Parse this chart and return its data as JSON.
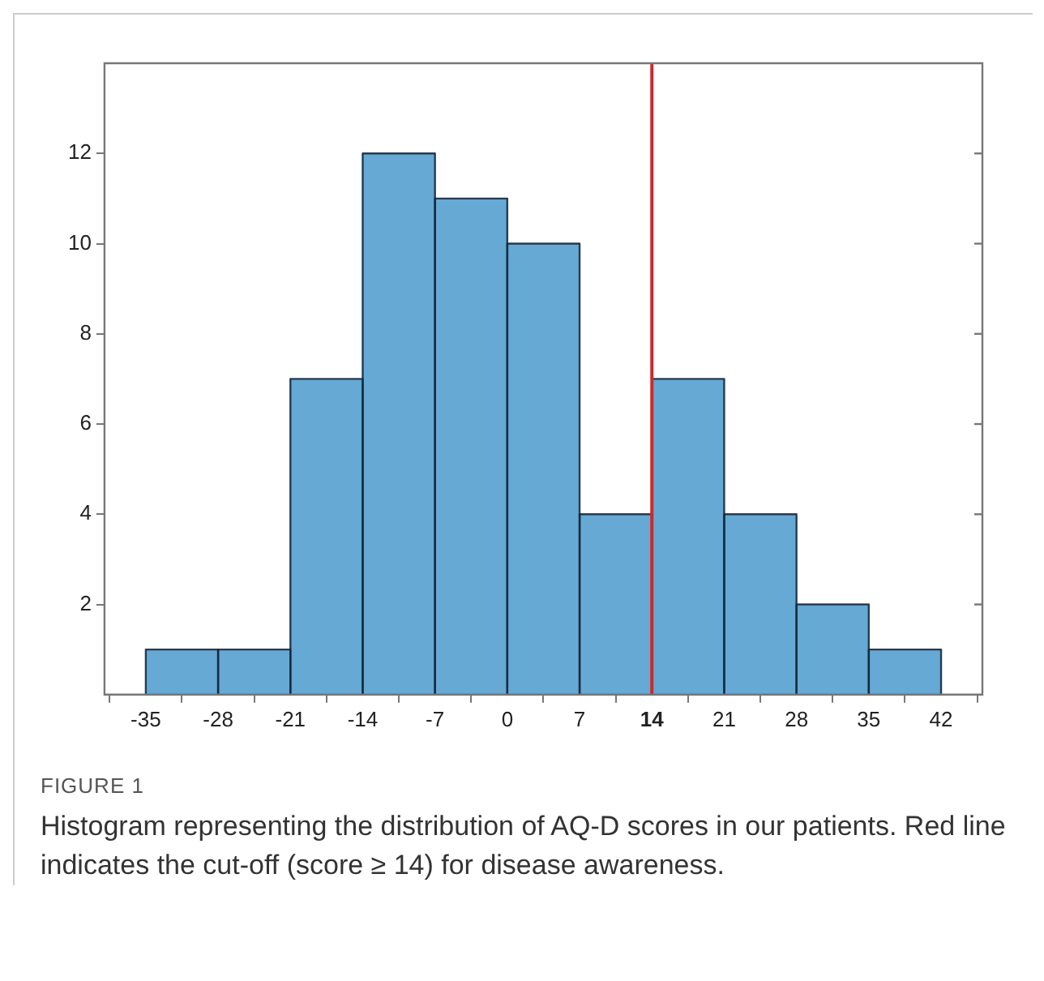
{
  "chart_data": {
    "type": "histogram",
    "bins": [
      -35,
      -28,
      -21,
      -14,
      -7,
      0,
      7,
      14,
      21,
      28,
      35,
      42
    ],
    "values": [
      1,
      1,
      7,
      12,
      11,
      10,
      4,
      7,
      4,
      2,
      1
    ],
    "color": "#65a9d4",
    "xlim": [
      -39,
      46
    ],
    "xticks": [
      -35,
      -28,
      -21,
      -14,
      -7,
      0,
      7,
      14,
      21,
      28,
      35,
      42
    ],
    "ylim": [
      0,
      14
    ],
    "yticks": [
      2,
      4,
      6,
      8,
      10,
      12
    ],
    "ref_lines": [
      {
        "axis": "x",
        "value": 14,
        "color": "#cc2a2a"
      }
    ],
    "grid": false,
    "legend": false,
    "annotations": [
      "FIGURE 1",
      "Histogram representing the distribution of AQ-D scores in our patients. Red line indicates the cut-off (score ≥ 14) for disease awareness."
    ]
  }
}
